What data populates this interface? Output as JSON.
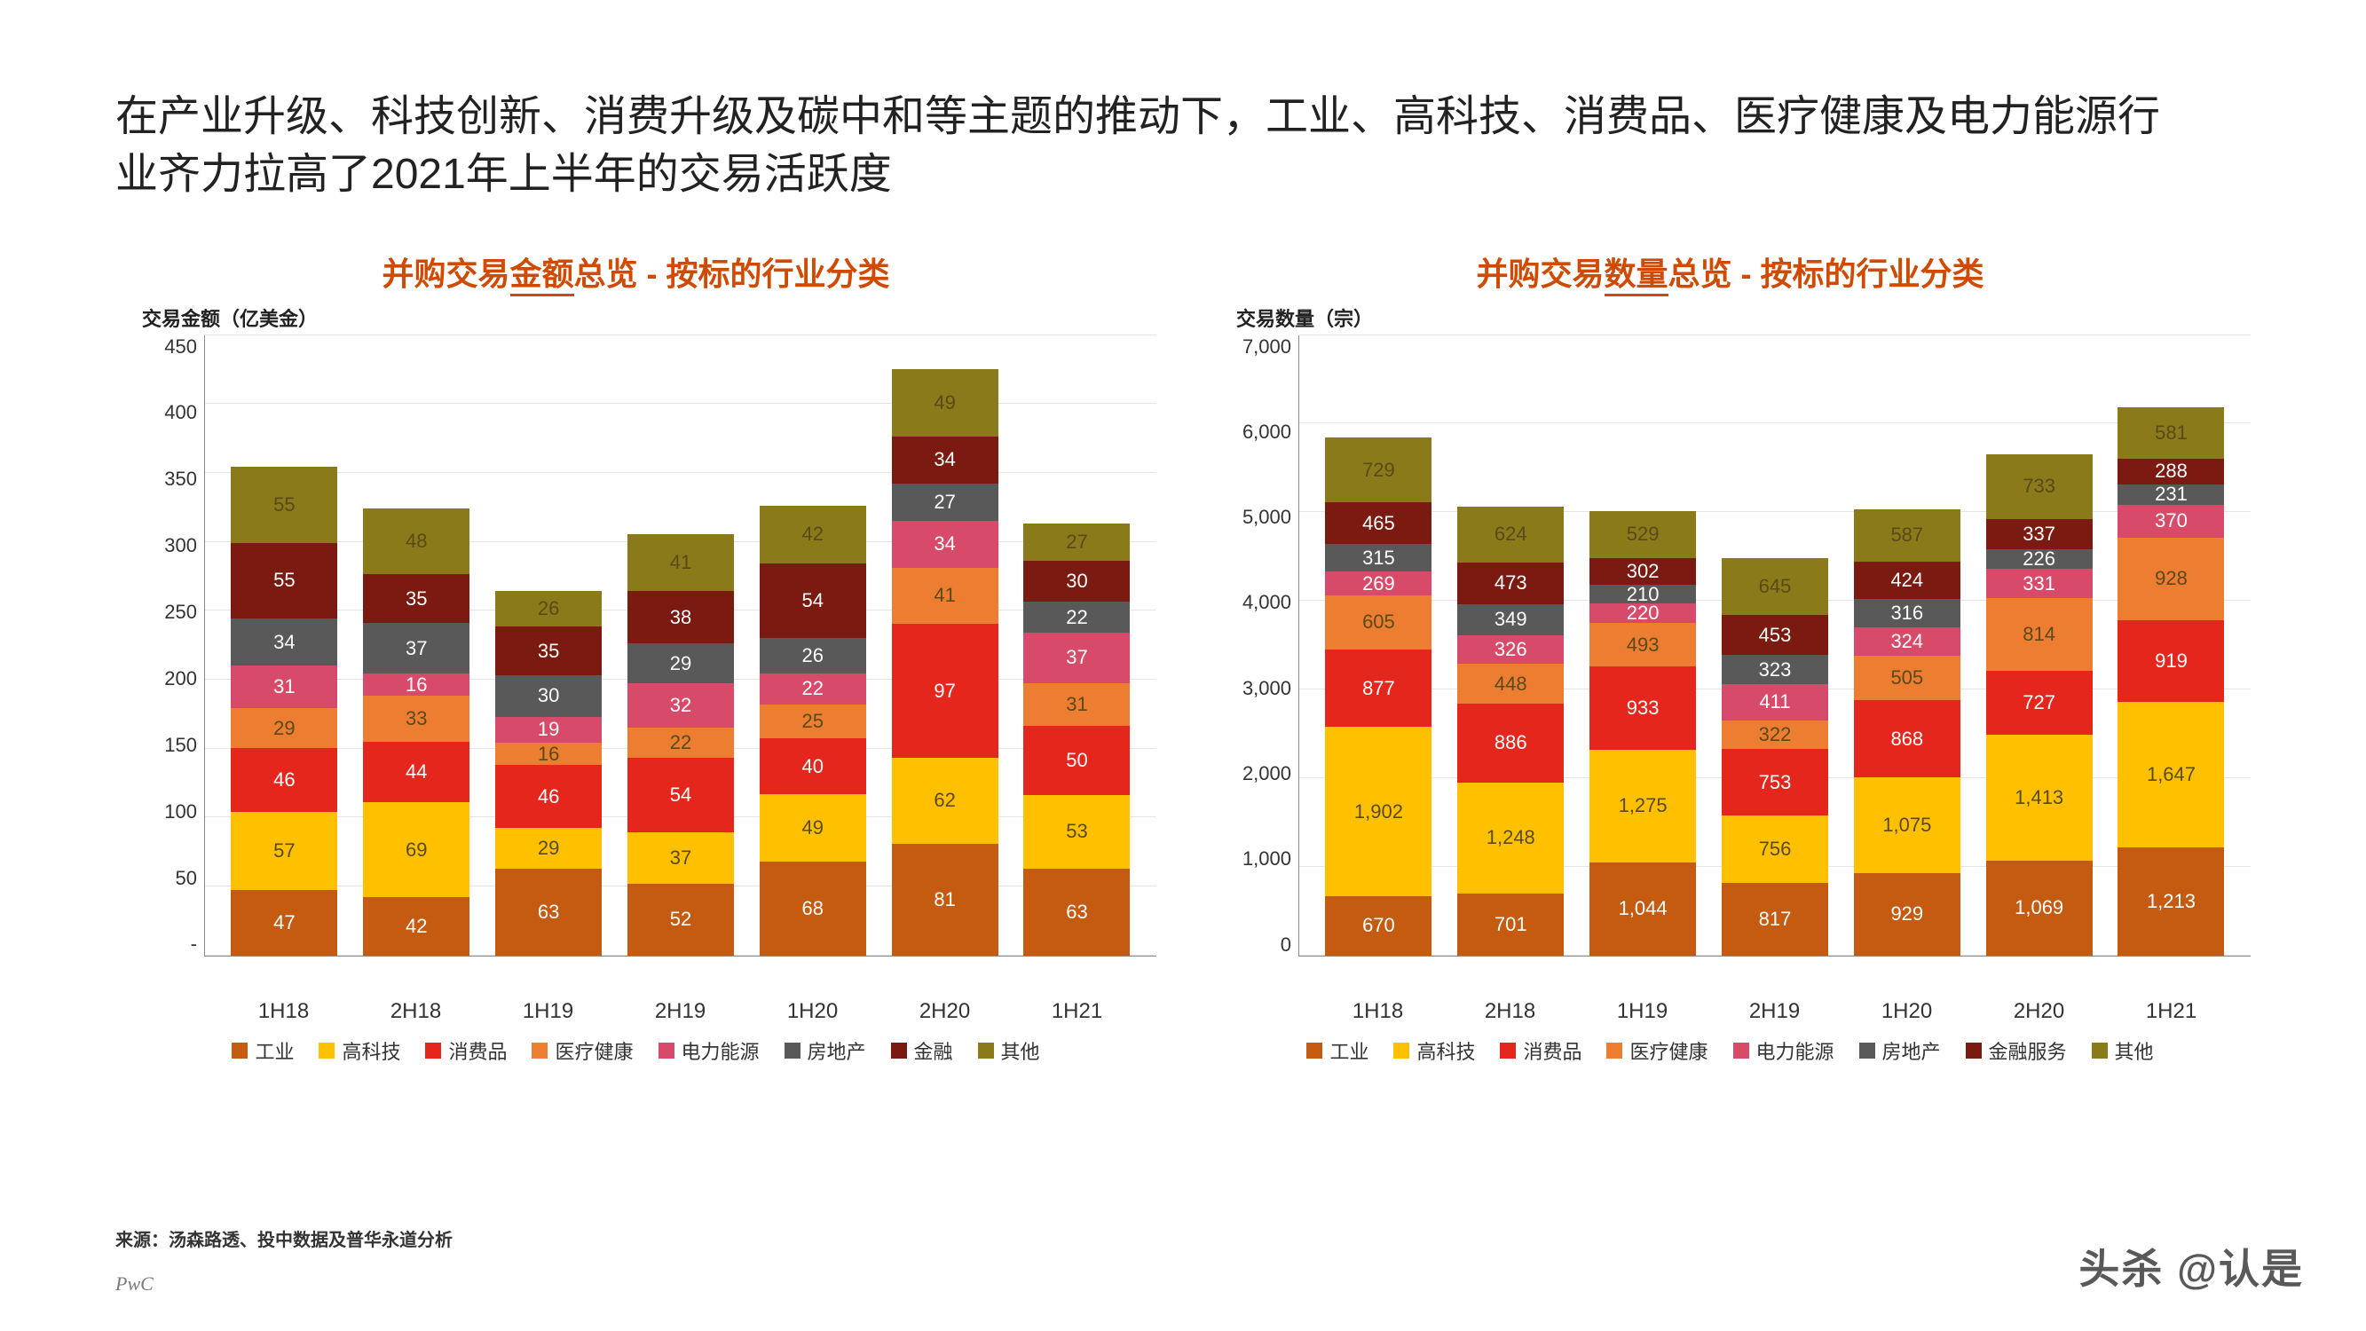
{
  "headline": "在产业升级、科技创新、消费升级及碳中和等主题的推动下，工业、高科技、消费品、医疗健康及电力能源行业齐力拉高了2021年上半年的交易活跃度",
  "title_color": "#d04a02",
  "source_note": "来源：汤森路透、投中数据及普华永道分析",
  "brand": "PwC",
  "watermark": "头杀 @认是",
  "series_colors": {
    "industrial": "#c55a11",
    "hitech": "#ffc000",
    "consumer": "#e5261c",
    "healthcare": "#ed7d31",
    "power": "#d84a6a",
    "realestate": "#595959",
    "finance": "#7a1a10",
    "other": "#8a7a1a"
  },
  "series_text_light": [
    "industrial",
    "consumer",
    "realestate",
    "finance",
    "power"
  ],
  "series_text_dark": [
    "hitech",
    "healthcare",
    "other"
  ],
  "chart_left": {
    "title_pre": "并购交易",
    "title_underline": "金额",
    "title_post": "总览 - 按标的行业分类",
    "y_axis_title": "交易金额（亿美金）",
    "ylim": [
      0,
      450
    ],
    "ytick_step": 50,
    "yticks": [
      "450",
      "400",
      "350",
      "300",
      "250",
      "200",
      "150",
      "100",
      "50",
      "-"
    ],
    "categories": [
      "1H18",
      "2H18",
      "1H19",
      "2H19",
      "1H20",
      "2H20",
      "1H21"
    ],
    "stack_order": [
      "industrial",
      "hitech",
      "consumer",
      "healthcare",
      "power",
      "realestate",
      "finance",
      "other"
    ],
    "legend": [
      {
        "key": "industrial",
        "label": "工业"
      },
      {
        "key": "hitech",
        "label": "高科技"
      },
      {
        "key": "consumer",
        "label": "消费品"
      },
      {
        "key": "healthcare",
        "label": "医疗健康"
      },
      {
        "key": "power",
        "label": "电力能源"
      },
      {
        "key": "realestate",
        "label": "房地产"
      },
      {
        "key": "finance",
        "label": "金融"
      },
      {
        "key": "other",
        "label": "其他"
      }
    ],
    "data": {
      "industrial": [
        47,
        42,
        63,
        52,
        68,
        81,
        63
      ],
      "hitech": [
        57,
        69,
        29,
        37,
        49,
        62,
        53
      ],
      "consumer": [
        46,
        44,
        46,
        54,
        40,
        97,
        50
      ],
      "healthcare": [
        29,
        33,
        16,
        22,
        25,
        41,
        31
      ],
      "power": [
        31,
        16,
        19,
        32,
        22,
        34,
        37
      ],
      "realestate": [
        34,
        37,
        30,
        29,
        26,
        27,
        22
      ],
      "finance": [
        55,
        35,
        35,
        38,
        54,
        34,
        30
      ],
      "other": [
        55,
        48,
        26,
        41,
        42,
        49,
        27
      ]
    }
  },
  "chart_right": {
    "title_pre": "并购交易",
    "title_underline": "数量",
    "title_post": "总览 - 按标的行业分类",
    "y_axis_title": "交易数量（宗）",
    "ylim": [
      0,
      7000
    ],
    "ytick_step": 1000,
    "yticks": [
      "7,000",
      "6,000",
      "5,000",
      "4,000",
      "3,000",
      "2,000",
      "1,000",
      "0"
    ],
    "categories": [
      "1H18",
      "2H18",
      "1H19",
      "2H19",
      "1H20",
      "2H20",
      "1H21"
    ],
    "stack_order": [
      "industrial",
      "hitech",
      "consumer",
      "healthcare",
      "power",
      "realestate",
      "finance",
      "other"
    ],
    "legend": [
      {
        "key": "industrial",
        "label": "工业"
      },
      {
        "key": "hitech",
        "label": "高科技"
      },
      {
        "key": "consumer",
        "label": "消费品"
      },
      {
        "key": "healthcare",
        "label": "医疗健康"
      },
      {
        "key": "power",
        "label": "电力能源"
      },
      {
        "key": "realestate",
        "label": "房地产"
      },
      {
        "key": "finance",
        "label": "金融服务"
      },
      {
        "key": "other",
        "label": "其他"
      }
    ],
    "data": {
      "industrial": [
        670,
        701,
        1044,
        817,
        929,
        1069,
        1213
      ],
      "hitech": [
        1902,
        1248,
        1275,
        756,
        1075,
        1413,
        1647
      ],
      "consumer": [
        877,
        886,
        933,
        753,
        868,
        727,
        919
      ],
      "healthcare": [
        605,
        448,
        493,
        322,
        505,
        814,
        928
      ],
      "power": [
        269,
        326,
        220,
        411,
        324,
        331,
        370
      ],
      "realestate": [
        315,
        349,
        210,
        323,
        316,
        226,
        231
      ],
      "finance": [
        465,
        473,
        302,
        453,
        424,
        337,
        288
      ],
      "other": [
        729,
        624,
        529,
        645,
        587,
        733,
        581
      ]
    }
  }
}
